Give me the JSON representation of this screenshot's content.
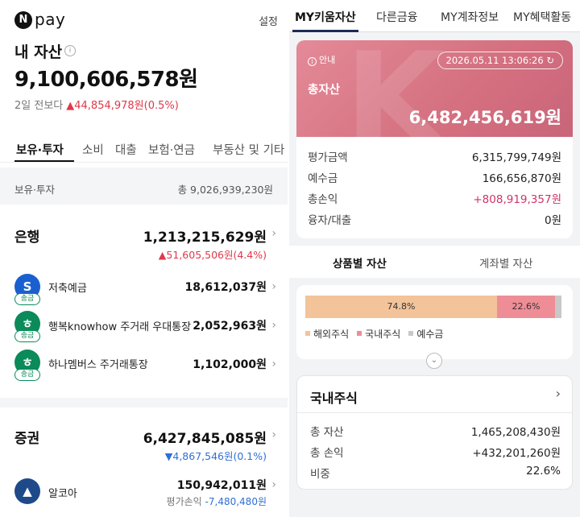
{
  "left": {
    "logo": {
      "mark": "N",
      "text": "pay"
    },
    "settings_label": "설정",
    "asset_title": "내 자산",
    "total_assets": "9,100,606,578원",
    "delta": {
      "label": "2일 전보다",
      "value": "▲44,854,978원(0.5%)"
    },
    "tabs": [
      "보유·투자",
      "소비",
      "대출",
      "보험·연금",
      "부동산 및 기타"
    ],
    "holdings_header": {
      "label": "보유·투자",
      "total": "총 9,026,939,230원"
    },
    "bank": {
      "title": "은행",
      "total": "1,213,215,629원",
      "change": "▲51,605,506원(4.4%)",
      "accounts": [
        {
          "name": "저축예금",
          "amount": "18,612,037원",
          "badge": "송금",
          "icon": "shinhan-icon",
          "color": "#1a5fd0"
        },
        {
          "name": "행복knowhow 주거래 우대통장",
          "amount": "2,052,963원",
          "badge": "송금",
          "icon": "hana-icon",
          "color": "#0b8a5a"
        },
        {
          "name": "하나멤버스 주거래통장",
          "amount": "1,102,000원",
          "badge": "송금",
          "icon": "hana-icon",
          "color": "#0b8a5a"
        }
      ]
    },
    "securities": {
      "title": "증권",
      "total": "6,427,845,085원",
      "change": "▼4,867,546원(0.1%)",
      "accounts": [
        {
          "name": "알코아",
          "amount": "150,942,011원",
          "sub_label": "평가손익",
          "sub_value": "-7,480,480원",
          "icon": "alcoa-icon",
          "color": "#1e4a8a"
        }
      ]
    }
  },
  "right": {
    "tabs": [
      "MY키움자산",
      "다른금융",
      "MY계좌정보",
      "MY혜택활동"
    ],
    "card": {
      "guide": "안내",
      "datetime": "2026.05.11 13:06:26",
      "total_label": "총자산",
      "total_amount": "6,482,456,619원",
      "watermark": "K"
    },
    "summary": [
      {
        "label": "평가금액",
        "value": "6,315,799,749원"
      },
      {
        "label": "예수금",
        "value": "166,656,870원"
      },
      {
        "label": "총손익",
        "value": "+808,919,357원"
      },
      {
        "label": "융자/대출",
        "value": "0원"
      }
    ],
    "asset_tabs": [
      "상품별 자산",
      "계좌별 자산"
    ],
    "allocation": {
      "segments": [
        {
          "name": "해외주식",
          "percent": 74.8,
          "label": "74.8%",
          "color": "#f3c39a"
        },
        {
          "name": "국내주식",
          "percent": 22.6,
          "label": "22.6%",
          "color": "#ef8d96"
        },
        {
          "name": "예수금",
          "percent": 2.6,
          "label": "",
          "color": "#c8c8c8"
        }
      ]
    },
    "domestic": {
      "title": "국내주식",
      "rows": [
        {
          "label": "총 자산",
          "value": "1,465,208,430원"
        },
        {
          "label": "총 손익",
          "value": "+432,201,260원"
        },
        {
          "label": "비중",
          "value": "22.6%"
        }
      ]
    }
  }
}
